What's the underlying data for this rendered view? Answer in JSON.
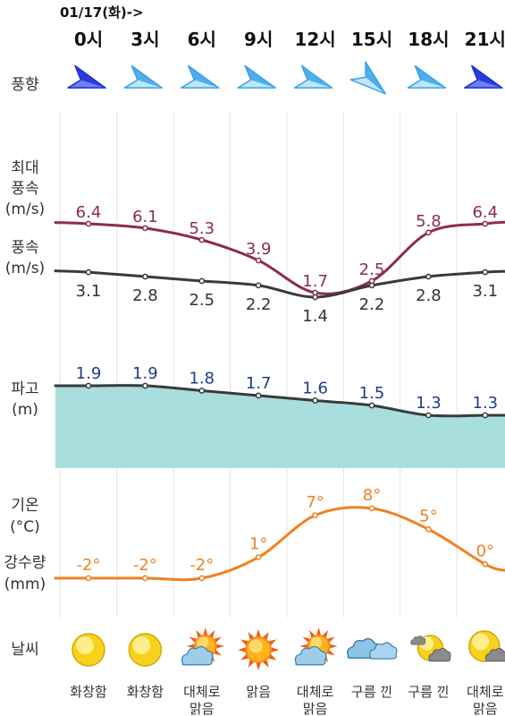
{
  "chart_data": {
    "type": "line",
    "date_label": "01/17(화)->",
    "categories": [
      "0시",
      "3시",
      "6시",
      "9시",
      "12시",
      "15시",
      "18시",
      "21시"
    ],
    "row_labels": {
      "wind_dir": "풍향",
      "max_wind": [
        "최대",
        "풍속",
        "(m/s)"
      ],
      "wind": [
        "풍속",
        "(m/s)"
      ],
      "wave": [
        "파고",
        "(m)"
      ],
      "temp": [
        "기온",
        "(°C)"
      ],
      "rain": [
        "강수량",
        "(mm)"
      ],
      "weather": "날씨"
    },
    "wind_direction": [
      "right-down",
      "right-down",
      "right-down",
      "right-down",
      "right-down",
      "down-right",
      "right-down",
      "right-down"
    ],
    "wind_arrow_shades": [
      "dark-blue",
      "light-blue",
      "light-blue",
      "light-blue",
      "light-blue",
      "light-blue",
      "light-blue",
      "dark-blue"
    ],
    "series": [
      {
        "name": "최대 풍속",
        "key": "max_wind",
        "values": [
          6.4,
          6.1,
          5.3,
          3.9,
          1.7,
          2.5,
          5.8,
          6.4
        ],
        "labels": [
          "6.4",
          "6.1",
          "5.3",
          "3.9",
          "1.7",
          "2.5",
          "5.8",
          "6.4"
        ],
        "color": "#8e2d4b"
      },
      {
        "name": "풍속",
        "key": "wind",
        "values": [
          3.1,
          2.8,
          2.5,
          2.2,
          1.4,
          2.2,
          2.8,
          3.1
        ],
        "labels": [
          "3.1",
          "2.8",
          "2.5",
          "2.2",
          "1.4",
          "2.2",
          "2.8",
          "3.1"
        ],
        "color": "#3a3a3a"
      },
      {
        "name": "파고",
        "key": "wave",
        "values": [
          1.9,
          1.9,
          1.8,
          1.7,
          1.6,
          1.5,
          1.3,
          1.3
        ],
        "labels": [
          "1.9",
          "1.9",
          "1.8",
          "1.7",
          "1.6",
          "1.5",
          "1.3",
          "1.3"
        ],
        "color": "#3a3a3a",
        "fill": "#a8dedd",
        "label_color": "#1c3c8c"
      },
      {
        "name": "기온",
        "key": "temp",
        "values": [
          -2,
          -2,
          -2,
          1,
          7,
          8,
          5,
          0
        ],
        "labels": [
          "-2°",
          "-2°",
          "-2°",
          "1°",
          "7°",
          "8°",
          "5°",
          "0°"
        ],
        "color": "#ee8122"
      }
    ],
    "weather": [
      "화창함",
      "화창함",
      "대체로 맑음",
      "맑음",
      "대체로 맑음",
      "구름 낀",
      "구름 낀",
      "대체로 맑음"
    ],
    "weather_icons": [
      "sun-icon",
      "sun-icon",
      "sun-cloud-icon",
      "sun-icon",
      "sun-cloud-icon",
      "cloud-icon",
      "moon-cloud-icon",
      "moon-cloud-icon"
    ],
    "colors": {
      "grid": "#e3e3e3",
      "label": "#333333"
    }
  }
}
